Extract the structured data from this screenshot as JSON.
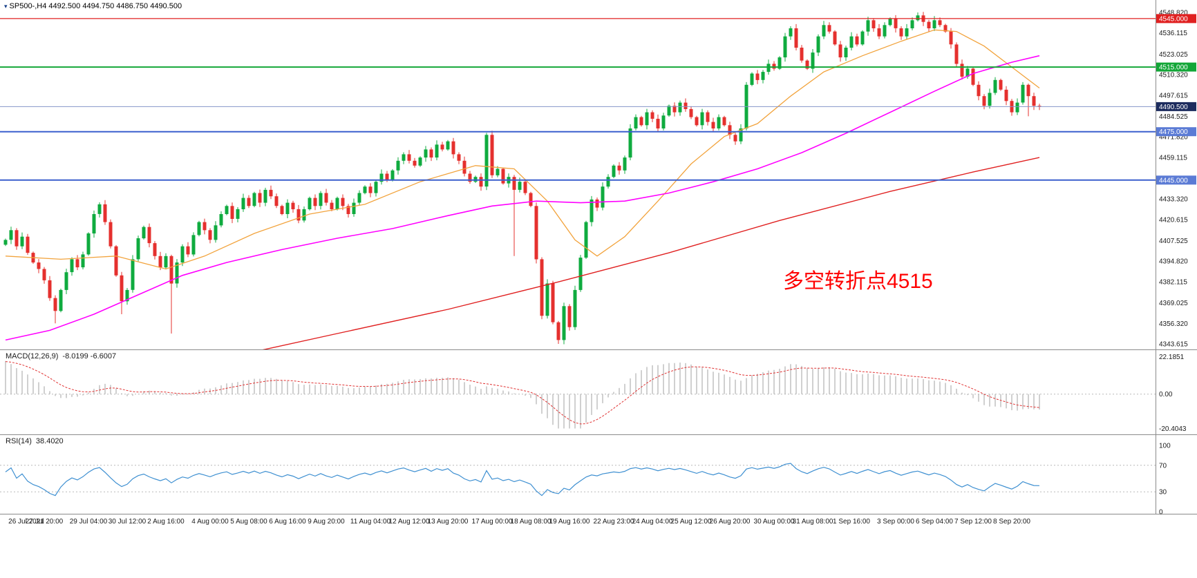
{
  "window": {
    "title": "SP500-,H4 4492.500 4494.750 4486.750 4490.500",
    "icon_char": "▾"
  },
  "annotation": {
    "text": "多空转折点4515",
    "color": "#ff0000"
  },
  "chart_data": {
    "type": "candlestick",
    "symbol": "SP500-",
    "timeframe": "H4",
    "current_bar": {
      "open": 4492.5,
      "high": 4494.75,
      "low": 4486.75,
      "close": 4490.5
    },
    "colors": {
      "up": "#0fab3f",
      "down": "#e5302e",
      "ma_fast": "#f2a33c",
      "ma_mid": "#ff00ff",
      "ma_slow": "#e02020",
      "macd_hist": "#b0b0b0",
      "macd_signal": "#e03030",
      "rsi": "#3d8fd1",
      "grid": "#b8b8b8",
      "axis_line": "#8a8a8a"
    },
    "price_axis_labels": [
      4548.82,
      4536.115,
      4523.025,
      4510.32,
      4497.615,
      4484.525,
      4471.82,
      4459.115,
      4433.32,
      4420.615,
      4407.525,
      4394.82,
      4382.115,
      4369.025,
      4356.32,
      4343.615
    ],
    "hlines": [
      {
        "price": 4545.0,
        "label": "4545.000",
        "color": "#e02020",
        "badge_bg": "#e02020",
        "line_width": 1.2
      },
      {
        "price": 4515.0,
        "label": "4515.000",
        "color": "#12a637",
        "badge_bg": "#12a637",
        "line_width": 2
      },
      {
        "price": 4475.0,
        "label": "4475.000",
        "color": "#3a5fcd",
        "badge_bg": "#5b7bd5",
        "line_width": 2
      },
      {
        "price": 4445.0,
        "label": "4445.000",
        "color": "#3a5fcd",
        "badge_bg": "#5b7bd5",
        "line_width": 2
      }
    ],
    "current_price": {
      "value": 4490.5,
      "label": "4490.500",
      "line_color": "#8494c8",
      "badge_bg": "#1d2c5e"
    },
    "x_labels": [
      {
        "text": "26 Jul 2021",
        "bar": 0
      },
      {
        "text": "27 Jul 20:00",
        "bar": 7
      },
      {
        "text": "29 Jul 04:00",
        "bar": 15
      },
      {
        "text": "30 Jul 12:00",
        "bar": 22
      },
      {
        "text": "2 Aug 16:00",
        "bar": 29
      },
      {
        "text": "4 Aug 00:00",
        "bar": 37
      },
      {
        "text": "5 Aug 08:00",
        "bar": 44
      },
      {
        "text": "6 Aug 16:00",
        "bar": 51
      },
      {
        "text": "9 Aug 20:00",
        "bar": 58
      },
      {
        "text": "11 Aug 04:00",
        "bar": 66
      },
      {
        "text": "12 Aug 12:00",
        "bar": 73
      },
      {
        "text": "13 Aug 20:00",
        "bar": 80
      },
      {
        "text": "17 Aug 00:00",
        "bar": 88
      },
      {
        "text": "18 Aug 08:00",
        "bar": 95
      },
      {
        "text": "19 Aug 16:00",
        "bar": 102
      },
      {
        "text": "22 Aug 23:00",
        "bar": 110
      },
      {
        "text": "24 Aug 04:00",
        "bar": 117
      },
      {
        "text": "25 Aug 12:00",
        "bar": 124
      },
      {
        "text": "26 Aug 20:00",
        "bar": 131
      },
      {
        "text": "30 Aug 00:00",
        "bar": 139
      },
      {
        "text": "31 Aug 08:00",
        "bar": 146
      },
      {
        "text": "1 Sep 16:00",
        "bar": 153
      },
      {
        "text": "3 Sep 00:00",
        "bar": 161
      },
      {
        "text": "6 Sep 04:00",
        "bar": 168
      },
      {
        "text": "7 Sep 12:00",
        "bar": 175
      },
      {
        "text": "8 Sep 20:00",
        "bar": 182
      }
    ],
    "closes": [
      4408,
      4414,
      4404,
      4410,
      4400,
      4394,
      4390,
      4383,
      4372,
      4364,
      4377,
      4388,
      4396,
      4391,
      4399,
      4412,
      4424,
      4430,
      4419,
      4404,
      4386,
      4370,
      4377,
      4396,
      4409,
      4416,
      4406,
      4398,
      4391,
      4398,
      4381,
      4394,
      4404,
      4399,
      4411,
      4419,
      4414,
      4408,
      4417,
      4424,
      4429,
      4421,
      4427,
      4434,
      4429,
      4437,
      4431,
      4439,
      4435,
      4429,
      4424,
      4431,
      4427,
      4420,
      4427,
      4434,
      4429,
      4437,
      4431,
      4427,
      4434,
      4429,
      4424,
      4431,
      4437,
      4441,
      4437,
      4444,
      4449,
      4445,
      4451,
      4457,
      4461,
      4457,
      4454,
      4459,
      4464,
      4459,
      4467,
      4464,
      4469,
      4461,
      4457,
      4449,
      4444,
      4447,
      4441,
      4473,
      4448,
      4452,
      4443,
      4447,
      4439,
      4444,
      4437,
      4429,
      4396,
      4361,
      4381,
      4357,
      4346,
      4367,
      4354,
      4377,
      4397,
      4419,
      4433,
      4428,
      4441,
      4447,
      4454,
      4451,
      4459,
      4477,
      4484,
      4479,
      4487,
      4483,
      4477,
      4485,
      4491,
      4487,
      4493,
      4489,
      4484,
      4479,
      4487,
      4481,
      4477,
      4484,
      4479,
      4473,
      4469,
      4477,
      4504,
      4511,
      4507,
      4512,
      4517,
      4514,
      4521,
      4534,
      4539,
      4527,
      4519,
      4514,
      4524,
      4534,
      4541,
      4537,
      4529,
      4521,
      4527,
      4534,
      4529,
      4537,
      4544,
      4539,
      4534,
      4541,
      4545,
      4539,
      4534,
      4539,
      4544,
      4547,
      4543,
      4539,
      4544,
      4541,
      4537,
      4529,
      4517,
      4509,
      4514,
      4504,
      4497,
      4491,
      4499,
      4507,
      4501,
      4494,
      4487,
      4493,
      4504,
      4497,
      4491,
      4490.5
    ],
    "wick_overrides": {
      "9": {
        "low": 4356.3
      },
      "21": {
        "low": 4362.0
      },
      "30": {
        "low": 4350.0
      },
      "92": {
        "low": 4398.0
      },
      "100": {
        "low": 4343.6
      },
      "165": {
        "high": 4548.8
      },
      "185": {
        "low": 4484.5
      }
    },
    "ma_lines": [
      {
        "name": "ma-fast-orange",
        "color": "#f2a33c",
        "width": 1.3,
        "points": [
          [
            0,
            4398
          ],
          [
            10,
            4396
          ],
          [
            20,
            4398
          ],
          [
            29,
            4390
          ],
          [
            36,
            4398
          ],
          [
            45,
            4412
          ],
          [
            55,
            4424
          ],
          [
            65,
            4430
          ],
          [
            75,
            4444
          ],
          [
            85,
            4454
          ],
          [
            92,
            4452
          ],
          [
            98,
            4432
          ],
          [
            103,
            4408
          ],
          [
            107,
            4398
          ],
          [
            112,
            4410
          ],
          [
            118,
            4432
          ],
          [
            124,
            4455
          ],
          [
            130,
            4472
          ],
          [
            136,
            4480
          ],
          [
            142,
            4497
          ],
          [
            148,
            4512
          ],
          [
            155,
            4522
          ],
          [
            162,
            4531
          ],
          [
            168,
            4538
          ],
          [
            172,
            4537
          ],
          [
            177,
            4528
          ],
          [
            182,
            4515
          ],
          [
            187,
            4502
          ]
        ]
      },
      {
        "name": "ma-mid-magenta",
        "color": "#ff00ff",
        "width": 1.6,
        "points": [
          [
            0,
            4346
          ],
          [
            8,
            4352
          ],
          [
            16,
            4362
          ],
          [
            24,
            4374
          ],
          [
            32,
            4386
          ],
          [
            40,
            4394
          ],
          [
            50,
            4402
          ],
          [
            60,
            4409
          ],
          [
            70,
            4415
          ],
          [
            80,
            4423
          ],
          [
            88,
            4429
          ],
          [
            96,
            4432
          ],
          [
            104,
            4431
          ],
          [
            112,
            4432
          ],
          [
            120,
            4437
          ],
          [
            128,
            4444
          ],
          [
            136,
            4452
          ],
          [
            144,
            4462
          ],
          [
            152,
            4474
          ],
          [
            160,
            4487
          ],
          [
            168,
            4500
          ],
          [
            175,
            4511
          ],
          [
            182,
            4518
          ],
          [
            187,
            4522
          ]
        ]
      },
      {
        "name": "ma-slow-red",
        "color": "#e02020",
        "width": 1.4,
        "points": [
          [
            0,
            4305
          ],
          [
            20,
            4320
          ],
          [
            40,
            4335
          ],
          [
            60,
            4350
          ],
          [
            80,
            4365
          ],
          [
            100,
            4382
          ],
          [
            120,
            4400
          ],
          [
            140,
            4420
          ],
          [
            160,
            4438
          ],
          [
            175,
            4450
          ],
          [
            187,
            4459
          ]
        ]
      }
    ],
    "indicators": {
      "macd": {
        "label": "MACD(12,26,9)",
        "values_label": "-8.0199 -6.6007",
        "axis": [
          [
            22.1851,
            "22.1851"
          ],
          [
            0,
            "0.00"
          ],
          [
            -20.4043,
            "-20.4043"
          ]
        ]
      },
      "rsi": {
        "label": "RSI(14)",
        "value_label": "38.4020",
        "axis": [
          [
            100,
            "100"
          ],
          [
            70,
            "70"
          ],
          [
            30,
            "30"
          ],
          [
            0,
            "0"
          ]
        ],
        "levels": [
          70,
          30
        ]
      }
    }
  }
}
